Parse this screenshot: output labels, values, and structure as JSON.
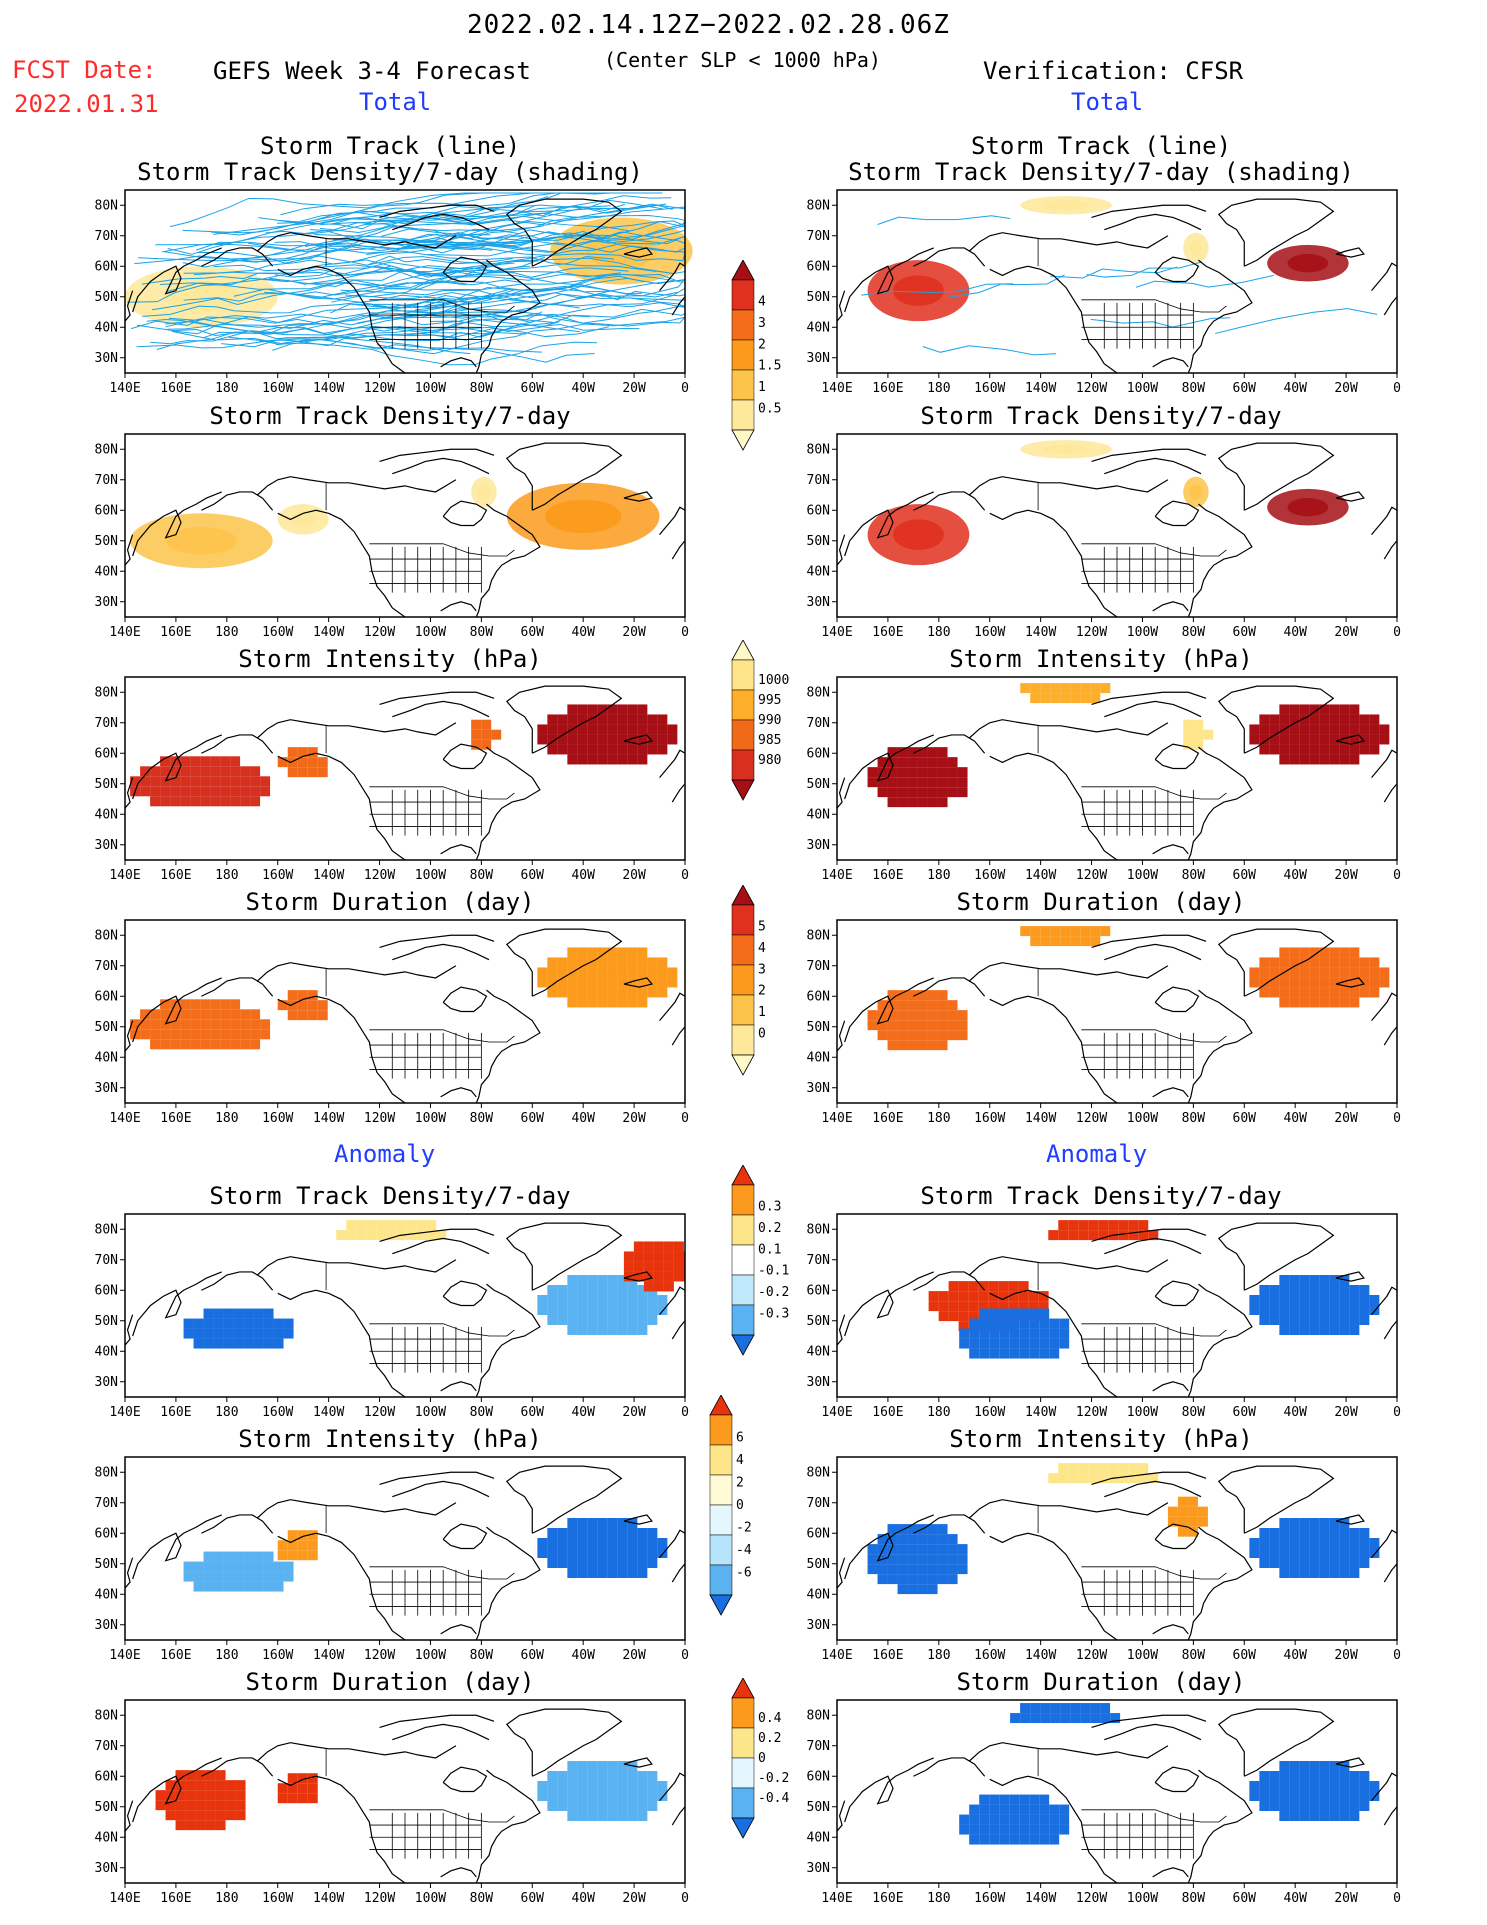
{
  "header": {
    "date_range": "2022.02.14.12Z−2022.02.28.06Z",
    "criterion": "(Center SLP < 1000 hPa)",
    "fcst_label": "FCST Date:",
    "fcst_date": "2022.01.31",
    "left_source": "GEFS Week 3-4 Forecast",
    "right_source": "Verification: CFSR",
    "section_total": "Total",
    "section_anomaly": "Anomaly"
  },
  "panel_titles": {
    "track_line": "Storm Track (line)",
    "track_shading": "Storm Track Density/7-day (shading)",
    "density": "Storm Track Density/7-day",
    "intensity": "Storm Intensity (hPa)",
    "duration": "Storm Duration (day)"
  },
  "axes": {
    "lat_labels": [
      "80N",
      "70N",
      "60N",
      "50N",
      "40N",
      "30N"
    ],
    "lon_labels": [
      "140E",
      "160E",
      "180",
      "160W",
      "140W",
      "120W",
      "100W",
      "80W",
      "60W",
      "40W",
      "20W",
      "0"
    ]
  },
  "colorbars": {
    "density_total": {
      "labels": [
        "4",
        "3",
        "2",
        "1.5",
        "1",
        "0.5"
      ],
      "colors": [
        "#a50f15",
        "#e0301e",
        "#f46d1b",
        "#fb9a1c",
        "#fdc44a",
        "#fee899",
        "#fff9c8"
      ]
    },
    "intensity_total": {
      "labels": [
        "1000",
        "995",
        "990",
        "985",
        "980"
      ],
      "colors": [
        "#fff9c8",
        "#fee58a",
        "#fdae2b",
        "#f06a1a",
        "#d7301f",
        "#a50f15"
      ]
    },
    "duration_total": {
      "labels": [
        "5",
        "4",
        "3",
        "2",
        "1",
        "0"
      ],
      "colors": [
        "#a50f15",
        "#e0301e",
        "#f46d1b",
        "#fb9a1c",
        "#fdc44a",
        "#fee899",
        "#fff9c8"
      ]
    },
    "density_anom": {
      "labels": [
        "0.3",
        "0.2",
        "0.1",
        "-0.1",
        "-0.2",
        "-0.3"
      ],
      "colors": [
        "#e8340c",
        "#fb9a1c",
        "#fde68a",
        "#ffffff",
        "#bfe9fb",
        "#5ab2f0",
        "#1a6fe0"
      ]
    },
    "intensity_anom": {
      "labels": [
        "6",
        "4",
        "2",
        "0",
        "-2",
        "-4",
        "-6"
      ],
      "colors": [
        "#e8340c",
        "#fb9a1c",
        "#fde68a",
        "#fffbd6",
        "#e4f6fe",
        "#b5e4fb",
        "#5ab2f0",
        "#1a6fe0"
      ]
    },
    "duration_anom": {
      "labels": [
        "0.4",
        "0.2",
        "0",
        "-0.2",
        "-0.4"
      ],
      "colors": [
        "#e8340c",
        "#fb9a1c",
        "#fde68a",
        "#e4f6fe",
        "#5ab2f0",
        "#1a6fe0"
      ]
    }
  },
  "colors": {
    "track_line": "#1aa3e8",
    "coast": "#000000",
    "frame": "#000000"
  },
  "regions": {
    "gefs_track": [
      [
        "n_pacific_density",
        0.45,
        "#fee899"
      ],
      [
        "atlantic_density",
        0.45,
        "#fdc44a"
      ]
    ],
    "cfsr_track": [
      [
        "kamchatka",
        0.6,
        "#e0301e"
      ],
      [
        "greenland_low",
        0.7,
        "#a50f15"
      ],
      [
        "hudson",
        0.3,
        "#fee899"
      ],
      [
        "arctic",
        0.2,
        "#fee899"
      ]
    ],
    "gefs_density": [
      [
        "n_pacific",
        0.5,
        "#fdc44a"
      ],
      [
        "alaska",
        0.3,
        "#fee899"
      ],
      [
        "labrador",
        0.5,
        "#fb9a1c"
      ],
      [
        "hudson",
        0.2,
        "#fee899"
      ]
    ],
    "cfsr_density": [
      [
        "kamchatka",
        0.8,
        "#e0301e"
      ],
      [
        "greenland_low",
        0.9,
        "#a50f15"
      ],
      [
        "arctic",
        0.3,
        "#fee899"
      ],
      [
        "hudson",
        0.3,
        "#fdc44a"
      ]
    ],
    "gefs_intensity": [
      [
        "n_pacific",
        0.9,
        "#d7301f"
      ],
      [
        "atlantic",
        1.0,
        "#a50f15"
      ],
      [
        "alaska",
        0.5,
        "#f06a1a"
      ],
      [
        "hudson",
        0.4,
        "#f06a1a"
      ]
    ],
    "cfsr_intensity": [
      [
        "kamchatka",
        0.9,
        "#a50f15"
      ],
      [
        "atlantic",
        0.9,
        "#a50f15"
      ],
      [
        "arctic",
        0.4,
        "#fdae2b"
      ],
      [
        "hudson",
        0.3,
        "#fee58a"
      ]
    ],
    "gefs_duration": [
      [
        "n_pacific",
        0.8,
        "#f46d1b"
      ],
      [
        "atlantic",
        0.7,
        "#fb9a1c"
      ],
      [
        "alaska",
        0.4,
        "#f46d1b"
      ]
    ],
    "cfsr_duration": [
      [
        "kamchatka",
        0.6,
        "#f46d1b"
      ],
      [
        "atlantic",
        0.6,
        "#f46d1b"
      ],
      [
        "arctic",
        0.3,
        "#fb9a1c"
      ]
    ],
    "gefs_dens_anom": [
      [
        "n_pacific_neg",
        -0.8,
        "#1a6fe0"
      ],
      [
        "atlantic_neg",
        -0.6,
        "#5ab2f0"
      ],
      [
        "atlantic_pos",
        0.7,
        "#e8340c"
      ],
      [
        "arctic_pos",
        0.4,
        "#fde68a"
      ]
    ],
    "cfsr_dens_anom": [
      [
        "pacific_pos",
        0.7,
        "#e8340c"
      ],
      [
        "pacific_neg",
        -0.8,
        "#1a6fe0"
      ],
      [
        "atlantic_neg",
        -0.8,
        "#1a6fe0"
      ],
      [
        "arctic_pos",
        0.8,
        "#e8340c"
      ]
    ],
    "gefs_int_anom": [
      [
        "n_pacific_neg",
        -0.5,
        "#5ab2f0"
      ],
      [
        "atlantic_neg",
        -0.9,
        "#1a6fe0"
      ],
      [
        "alaska_pos",
        0.4,
        "#fb9a1c"
      ]
    ],
    "cfsr_int_anom": [
      [
        "kamchatka_neg",
        -0.8,
        "#1a6fe0"
      ],
      [
        "atlantic_neg",
        -0.8,
        "#1a6fe0"
      ],
      [
        "arctic_pos",
        0.4,
        "#fde68a"
      ],
      [
        "hudson_pos",
        0.4,
        "#fb9a1c"
      ]
    ],
    "gefs_dur_anom": [
      [
        "n_pacific_pos",
        0.8,
        "#e8340c"
      ],
      [
        "atlantic_neg",
        -0.6,
        "#5ab2f0"
      ],
      [
        "alaska_pos",
        0.5,
        "#e8340c"
      ]
    ],
    "cfsr_dur_anom": [
      [
        "pacific_neg",
        -0.9,
        "#1a6fe0"
      ],
      [
        "atlantic_neg",
        -0.8,
        "#1a6fe0"
      ],
      [
        "arctic_neg",
        -0.9,
        "#1a6fe0"
      ]
    ]
  }
}
